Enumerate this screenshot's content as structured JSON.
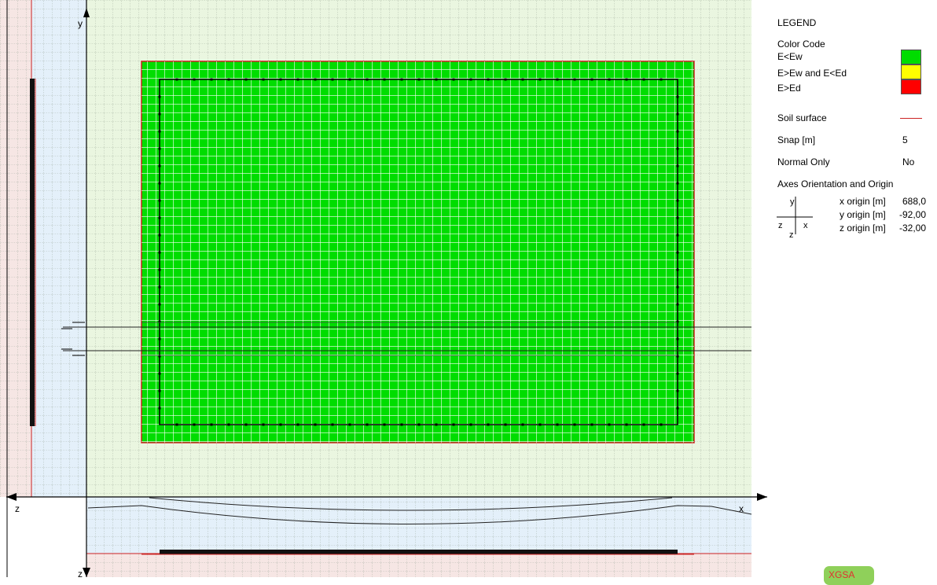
{
  "colors": {
    "green_zone": "#00dd00",
    "yellow_zone": "#ffff00",
    "red_zone": "#ff0000",
    "soil_line": "#cc2222",
    "grid_green_bg": "#eaf6e0",
    "grid_blue_bg": "#e4f0fa",
    "grid_pink_bg": "#f6e6e4"
  },
  "axes": {
    "y_top": "y",
    "z_left": "z",
    "x_right": "x",
    "z_bottom": "z"
  },
  "legend": {
    "title": "LEGEND",
    "color_code_label": "Color Code",
    "items": [
      {
        "label": "E<Ew",
        "color": "#00dd00"
      },
      {
        "label": "E>Ew and E<Ed",
        "color": "#ffff00"
      },
      {
        "label": "E>Ed",
        "color": "#ff0000"
      }
    ],
    "soil_surface_label": "Soil surface",
    "snap_label": "Snap [m]",
    "snap_value": "5",
    "normal_only_label": "Normal Only",
    "normal_only_value": "No",
    "axes_title": "Axes Orientation and Origin",
    "icon": {
      "y": "y",
      "z": "z",
      "x": "x",
      "z2": "z"
    },
    "origins": [
      {
        "label": "x origin [m]",
        "value": "688,0"
      },
      {
        "label": "y origin [m]",
        "value": "-92,00"
      },
      {
        "label": "z origin [m]",
        "value": "-32,00"
      }
    ]
  },
  "logo_text": "XGSA"
}
